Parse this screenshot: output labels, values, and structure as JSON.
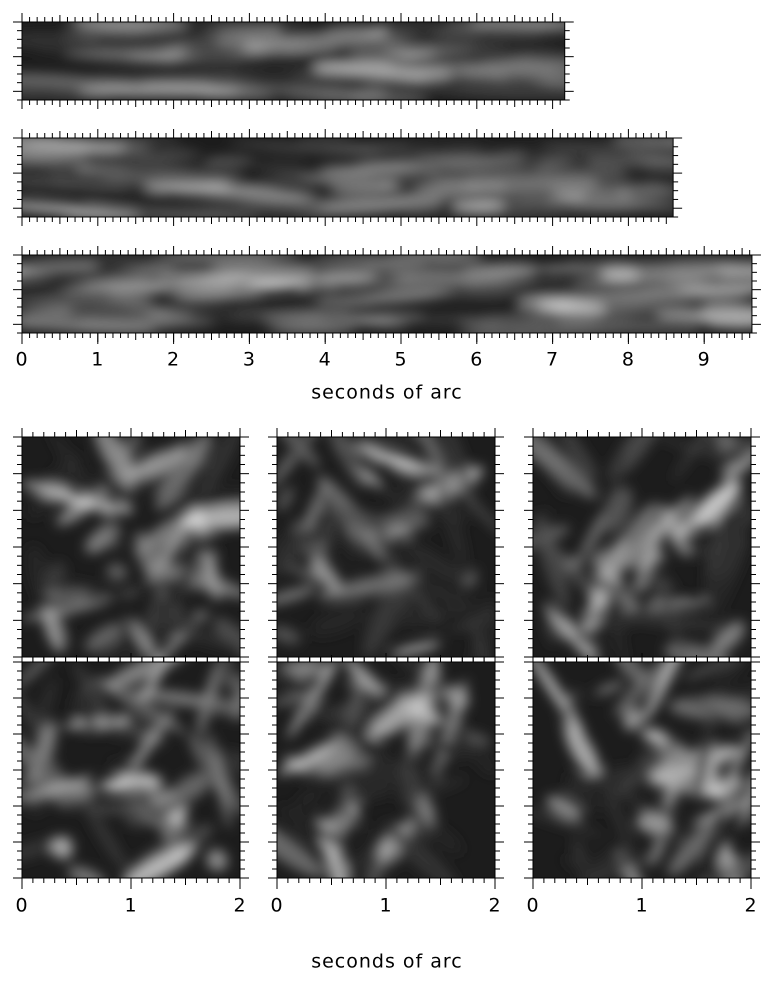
{
  "chart_data": [
    {
      "type": "image",
      "xlabel": "seconds of arc",
      "xticks": [
        0,
        1,
        2,
        3,
        4,
        5,
        6,
        7,
        8,
        9
      ],
      "panels": [
        {
          "xlim": [
            0,
            7.16
          ]
        },
        {
          "xlim": [
            0,
            8.59
          ]
        },
        {
          "xlim": [
            0,
            9.63
          ]
        }
      ]
    },
    {
      "type": "image",
      "xlabel": "seconds of arc",
      "xticks": [
        0,
        1,
        2
      ],
      "xlim": [
        0,
        2
      ]
    }
  ]
}
